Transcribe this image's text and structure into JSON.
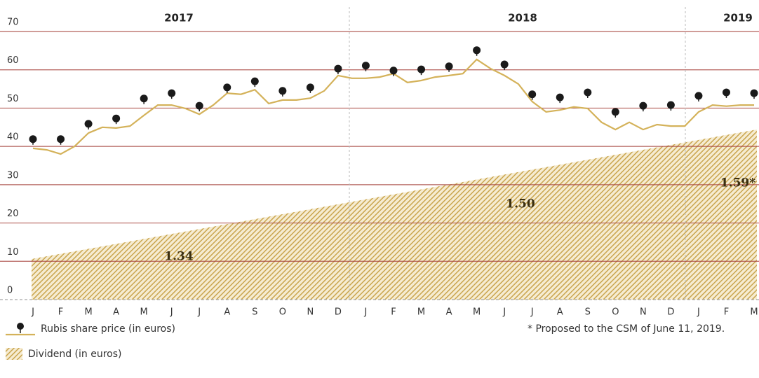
{
  "chart_data": {
    "type": "line",
    "year_labels": [
      "2017",
      "2018",
      "2019"
    ],
    "categories": [
      "J",
      "F",
      "M",
      "A",
      "M",
      "J",
      "J",
      "A",
      "S",
      "O",
      "N",
      "D",
      "J",
      "F",
      "M",
      "A",
      "M",
      "J",
      "J",
      "A",
      "S",
      "O",
      "N",
      "D",
      "J",
      "F",
      "M"
    ],
    "ylim": [
      0,
      70
    ],
    "yticks": [
      0,
      10,
      20,
      30,
      40,
      50,
      60,
      70
    ],
    "xlim": [
      0,
      26
    ],
    "grid": true,
    "series": [
      {
        "name": "Rubis share price (in euros)",
        "color": "#d4b25a",
        "x": [
          0,
          0.5,
          1,
          1.5,
          2,
          2.5,
          3,
          3.5,
          4,
          4.5,
          5,
          5.5,
          6,
          6.5,
          7,
          7.5,
          8,
          8.5,
          9,
          9.5,
          10,
          10.5,
          11,
          11.5,
          12,
          12.5,
          13,
          13.5,
          14,
          14.5,
          15,
          15.5,
          16,
          16.5,
          17,
          17.5,
          18,
          18.5,
          19,
          19.5,
          20,
          20.5,
          21,
          21.5,
          22,
          22.5,
          23,
          23.5,
          24,
          24.5,
          25,
          25.5,
          26
        ],
        "values": [
          39.5,
          39.1,
          38.0,
          40.0,
          43.5,
          45.0,
          44.8,
          45.3,
          48.1,
          50.8,
          50.8,
          49.9,
          48.4,
          50.8,
          53.9,
          53.6,
          54.8,
          51.2,
          52.1,
          52.1,
          52.6,
          54.5,
          58.5,
          57.8,
          57.8,
          58.1,
          59.0,
          56.7,
          57.2,
          58.1,
          58.5,
          59.0,
          62.7,
          60.3,
          58.5,
          56.3,
          51.7,
          49.0,
          49.5,
          50.3,
          49.9,
          46.3,
          44.4,
          46.3,
          44.4,
          45.7,
          45.3,
          45.3,
          49.0,
          50.8,
          50.5,
          50.8,
          50.8
        ],
        "markers": [
          41.9,
          41.9,
          45.9,
          47.3,
          52.5,
          53.9,
          50.6,
          55.4,
          57.0,
          54.5,
          55.4,
          60.3,
          61.1,
          59.8,
          60.1,
          60.9,
          65.1,
          61.4,
          53.6,
          52.8,
          54.1,
          49.0,
          50.6,
          50.8,
          53.2,
          54.1,
          53.9
        ],
        "marker_color": "#1a1a1a"
      }
    ],
    "dividend": {
      "name": "Dividend (in euros)",
      "color": "#c9a54e",
      "labels": [
        "1.34",
        "1.50",
        "1.59*"
      ]
    },
    "footnote": "* Proposed to the CSM of June 11, 2019.",
    "grid_color": "#a8453f"
  }
}
